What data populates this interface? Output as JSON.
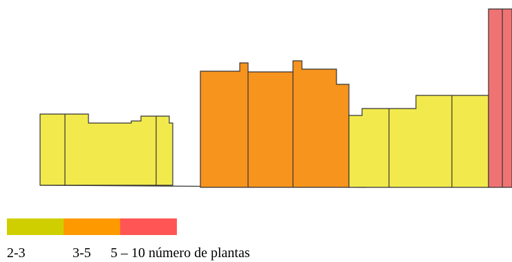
{
  "legend": {
    "colors": [
      "#cfcf00",
      "#ff9900",
      "#ff5555"
    ],
    "labels": [
      "2-3",
      "3-5",
      "5 – 10 número de plantas"
    ]
  },
  "buildings": {
    "stroke": "#333333",
    "low_fill": "#f2ea4c",
    "mid_fill": "#f7941d",
    "high_fill": "#f07373"
  }
}
